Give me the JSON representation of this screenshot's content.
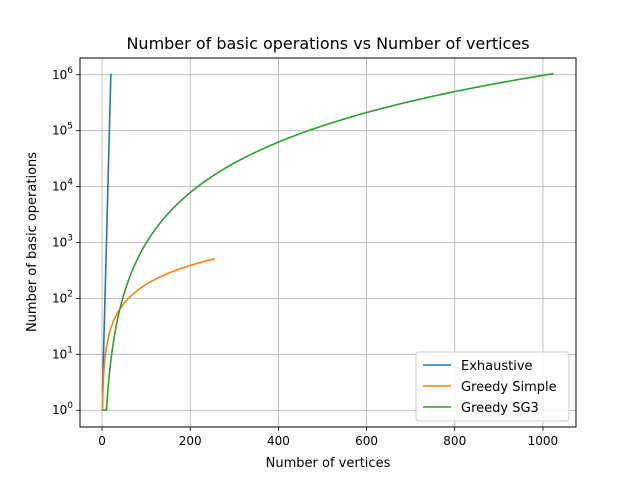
{
  "chart_data": {
    "type": "line",
    "title": "Number of basic operations vs Number of vertices",
    "xlabel": "Number of vertices",
    "ylabel": "Number of basic operations",
    "xlim": [
      -50,
      1075
    ],
    "ylim_log10": [
      -0.3,
      6.3
    ],
    "yscale": "log",
    "grid": true,
    "legend_position": "lower-right",
    "x_ticks": [
      0,
      200,
      400,
      600,
      800,
      1000
    ],
    "y_ticks": [
      {
        "value": 1,
        "exp": "0"
      },
      {
        "value": 10,
        "exp": "1"
      },
      {
        "value": 100,
        "exp": "2"
      },
      {
        "value": 1000,
        "exp": "3"
      },
      {
        "value": 10000,
        "exp": "4"
      },
      {
        "value": 100000,
        "exp": "5"
      },
      {
        "value": 1000000,
        "exp": "6"
      }
    ],
    "series": [
      {
        "name": "Exhaustive",
        "color": "#1f77b4",
        "x": [
          1,
          2,
          3,
          4,
          5,
          6,
          7,
          8,
          9,
          10,
          11,
          12,
          13,
          14,
          15,
          16,
          17,
          18,
          19,
          20
        ],
        "y": [
          2,
          4,
          8,
          16,
          32,
          64,
          128,
          256,
          512,
          1024,
          2048,
          4096,
          8192,
          16384,
          32768,
          65536,
          131072,
          262144,
          524288,
          1048576
        ]
      },
      {
        "name": "Greedy Simple",
        "color": "#ff7f0e",
        "x": [
          1,
          2,
          4,
          8,
          16,
          32,
          48,
          64,
          96,
          128,
          160,
          192,
          224,
          256
        ],
        "y": [
          1,
          2,
          4,
          8,
          16,
          32,
          48,
          64,
          96,
          128,
          160,
          192,
          224,
          256
        ],
        "y_exponent": 1.125
      },
      {
        "name": "Greedy SG3",
        "color": "#2ca02c",
        "x": [
          1,
          2,
          4,
          8,
          16,
          32,
          64,
          128,
          256,
          384,
          512,
          640,
          768,
          896,
          1024
        ],
        "y": [
          1,
          8,
          64,
          512,
          4096,
          32768,
          262144,
          2097152,
          16777216,
          56623104,
          134217728,
          262144000,
          452984832,
          719323136,
          1073741824
        ],
        "y_scale": 0.000976
      }
    ]
  }
}
